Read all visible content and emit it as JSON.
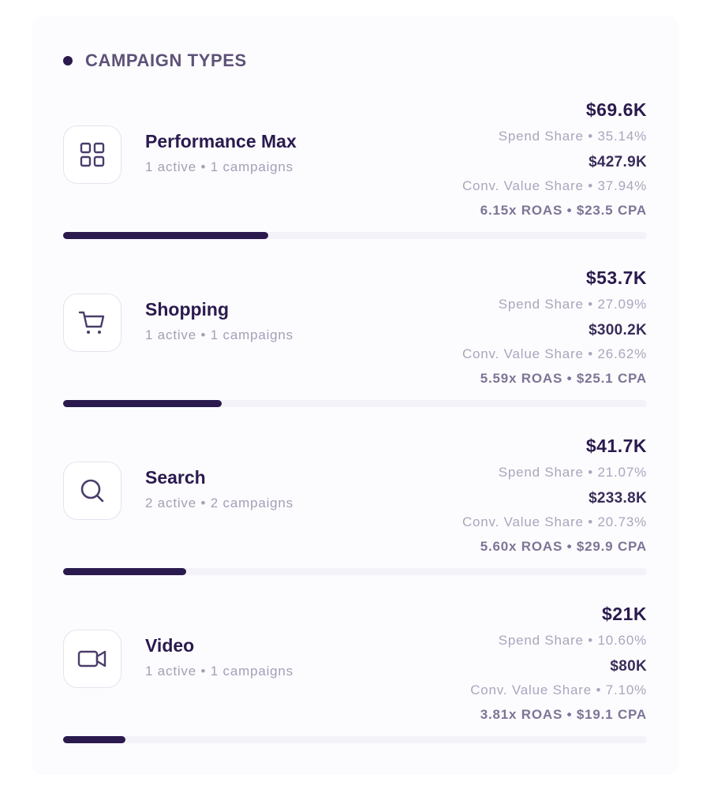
{
  "section": {
    "title": "CAMPAIGN TYPES"
  },
  "colors": {
    "accent": "#2a1a4e",
    "muted": "#aba5bd",
    "track": "#f3f2f8"
  },
  "campaigns": [
    {
      "icon": "grid-icon",
      "name": "Performance Max",
      "meta": "1 active • 1 campaigns",
      "spend": "$69.6K",
      "spend_share": "Spend Share • 35.14%",
      "conv_value": "$427.9K",
      "conv_value_share": "Conv. Value Share • 37.94%",
      "roas_cpa": "6.15x ROAS • $23.5 CPA",
      "spend_share_pct": 35.14
    },
    {
      "icon": "shopping-cart-icon",
      "name": "Shopping",
      "meta": "1 active • 1 campaigns",
      "spend": "$53.7K",
      "spend_share": "Spend Share • 27.09%",
      "conv_value": "$300.2K",
      "conv_value_share": "Conv. Value Share • 26.62%",
      "roas_cpa": "5.59x ROAS • $25.1 CPA",
      "spend_share_pct": 27.09
    },
    {
      "icon": "search-icon",
      "name": "Search",
      "meta": "2 active • 2 campaigns",
      "spend": "$41.7K",
      "spend_share": "Spend Share • 21.07%",
      "conv_value": "$233.8K",
      "conv_value_share": "Conv. Value Share • 20.73%",
      "roas_cpa": "5.60x ROAS • $29.9 CPA",
      "spend_share_pct": 21.07
    },
    {
      "icon": "video-camera-icon",
      "name": "Video",
      "meta": "1 active • 1 campaigns",
      "spend": "$21K",
      "spend_share": "Spend Share • 10.60%",
      "conv_value": "$80K",
      "conv_value_share": "Conv. Value Share • 7.10%",
      "roas_cpa": "3.81x ROAS • $19.1 CPA",
      "spend_share_pct": 10.6
    }
  ]
}
